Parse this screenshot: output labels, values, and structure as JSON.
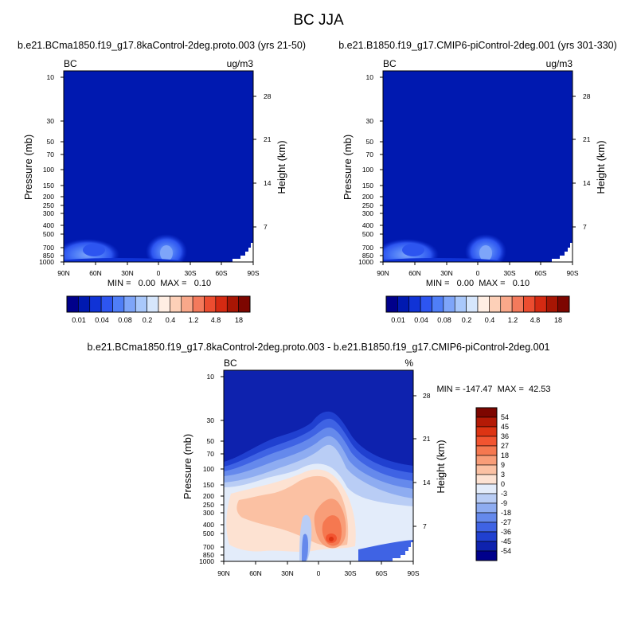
{
  "figure": {
    "title": "BC JJA"
  },
  "chart_data": [
    {
      "type": "heatmap",
      "title": "b.e21.BCma1850.f19_g17.8kaControl-2deg.proto.003 (yrs 21-50)",
      "left_label": "BC",
      "right_label": "ug/m3",
      "xlabel": "",
      "ylabel": "Pressure (mb)",
      "y2label": "Height (km)",
      "x_ticks": [
        "90N",
        "60N",
        "30N",
        "0",
        "30S",
        "60S",
        "90S"
      ],
      "y_ticks": [
        10,
        30,
        50,
        70,
        100,
        150,
        200,
        250,
        300,
        400,
        500,
        700,
        850,
        1000
      ],
      "y2_ticks": [
        28,
        21,
        14,
        7
      ],
      "ylim": [
        1000,
        10
      ],
      "y_scale": "log",
      "stats": "MIN =   0.00  MAX =   0.10",
      "colorbar": {
        "orientation": "horizontal",
        "labels": [
          "0.01",
          "0.04",
          "0.08",
          "0.2",
          "0.4",
          "1.2",
          "4.8",
          "18"
        ],
        "colors": [
          "#00008b",
          "#0019b0",
          "#1033d6",
          "#2d55f0",
          "#4f7ef7",
          "#7ea5f9",
          "#a9c8fb",
          "#d6e6fc",
          "#ffeee3",
          "#fdd0b8",
          "#f9a88a",
          "#f47a5c",
          "#ec4d30",
          "#d52a12",
          "#a81604",
          "#7d0600"
        ]
      },
      "features": [
        {
          "lat": 70,
          "p": 780,
          "value": 0.02,
          "description": "near-surface blob"
        },
        {
          "lat": 1,
          "p": 720,
          "value": 0.04,
          "description": "lower tropospheric maximum"
        }
      ]
    },
    {
      "type": "heatmap",
      "title": "b.e21.B1850.f19_g17.CMIP6-piControl-2deg.001 (yrs 301-330)",
      "left_label": "BC",
      "right_label": "ug/m3",
      "xlabel": "",
      "ylabel": "Pressure (mb)",
      "y2label": "Height (km)",
      "x_ticks": [
        "90N",
        "60N",
        "30N",
        "0",
        "30S",
        "60S",
        "90S"
      ],
      "y_ticks": [
        10,
        30,
        50,
        70,
        100,
        150,
        200,
        250,
        300,
        400,
        500,
        700,
        850,
        1000
      ],
      "y2_ticks": [
        28,
        21,
        14,
        7
      ],
      "ylim": [
        1000,
        10
      ],
      "y_scale": "log",
      "stats": "MIN =   0.00  MAX =   0.10",
      "colorbar": {
        "orientation": "horizontal",
        "labels": [
          "0.01",
          "0.04",
          "0.08",
          "0.2",
          "0.4",
          "1.2",
          "4.8",
          "18"
        ],
        "colors": [
          "#00008b",
          "#0019b0",
          "#1033d6",
          "#2d55f0",
          "#4f7ef7",
          "#7ea5f9",
          "#a9c8fb",
          "#d6e6fc",
          "#ffeee3",
          "#fdd0b8",
          "#f9a88a",
          "#f47a5c",
          "#ec4d30",
          "#d52a12",
          "#a81604",
          "#7d0600"
        ]
      },
      "features": [
        {
          "lat": 70,
          "p": 780,
          "value": 0.02,
          "description": "near-surface blob"
        },
        {
          "lat": 1,
          "p": 720,
          "value": 0.04,
          "description": "lower tropospheric maximum"
        }
      ]
    },
    {
      "type": "heatmap",
      "title": "b.e21.BCma1850.f19_g17.8kaControl-2deg.proto.003 - b.e21.B1850.f19_g17.CMIP6-piControl-2deg.001",
      "left_label": "BC",
      "right_label": "%",
      "xlabel": "",
      "ylabel": "Pressure (mb)",
      "y2label": "Height (km)",
      "x_ticks": [
        "90N",
        "60N",
        "30N",
        "0",
        "30S",
        "60S",
        "90S"
      ],
      "y_ticks": [
        10,
        30,
        50,
        70,
        100,
        150,
        200,
        250,
        300,
        400,
        500,
        700,
        850,
        1000
      ],
      "y2_ticks": [
        28,
        21,
        14,
        7
      ],
      "ylim": [
        1000,
        10
      ],
      "y_scale": "log",
      "stats": "MIN = -147.47  MAX =  42.53",
      "colorbar": {
        "orientation": "vertical",
        "labels": [
          "54",
          "45",
          "36",
          "27",
          "18",
          "9",
          "3",
          "0",
          "-3",
          "-9",
          "-18",
          "-27",
          "-36",
          "-45",
          "-54"
        ],
        "colors": [
          "#7d0600",
          "#b41a06",
          "#dd3413",
          "#f25430",
          "#f57850",
          "#f89d78",
          "#fbc1a3",
          "#fde2d2",
          "#e3ecfa",
          "#b9cdf5",
          "#8eacf1",
          "#6589ec",
          "#3f63e4",
          "#2040d0",
          "#0e22ae",
          "#00008b"
        ]
      },
      "features": [
        {
          "lat": -8,
          "p": 500,
          "value": 27,
          "description": "positive maximum"
        },
        {
          "lat": 5,
          "p": 350,
          "value": 9,
          "description": "positive plume"
        },
        {
          "lat": 45,
          "p": 350,
          "value": 9,
          "description": "northern positive lobe"
        },
        {
          "lat": 10,
          "p": 800,
          "value": -27,
          "description": "near-surface negative"
        }
      ]
    }
  ]
}
